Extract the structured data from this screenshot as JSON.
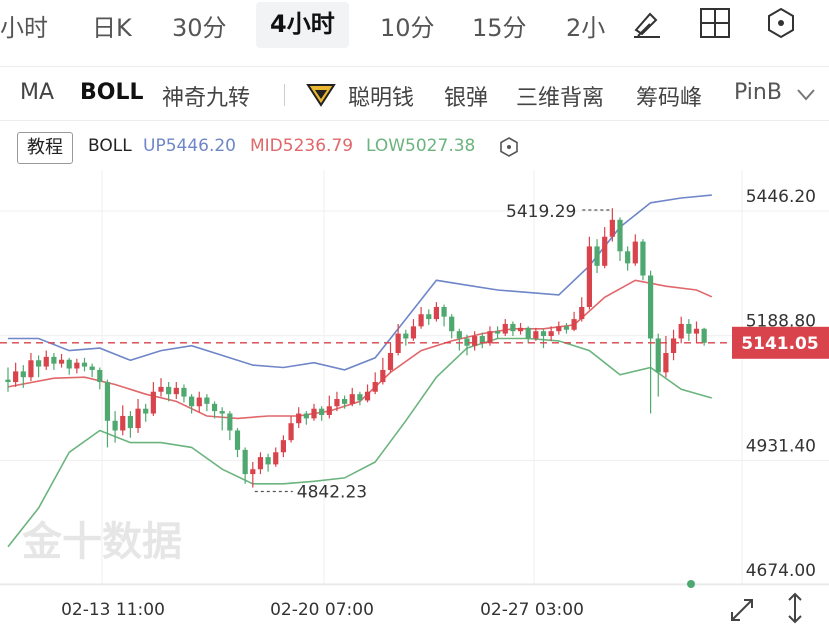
{
  "period_tabs": [
    {
      "label": "小时",
      "active": false
    },
    {
      "label": "日K",
      "active": false
    },
    {
      "label": "30分",
      "active": false
    },
    {
      "label": "4小时",
      "active": true
    },
    {
      "label": "10分",
      "active": false
    },
    {
      "label": "15分",
      "active": false
    },
    {
      "label": "2小",
      "active": false
    }
  ],
  "toolbar_icons": [
    "draw-pen-icon",
    "grid-layout-icon",
    "settings-hex-icon"
  ],
  "indicator_tabs": [
    {
      "label": "MA",
      "active": false
    },
    {
      "label": "BOLL",
      "active": true
    },
    {
      "label": "神奇九转",
      "active": false
    },
    {
      "label": "聪明钱",
      "active": false
    },
    {
      "label": "银弹",
      "active": false
    },
    {
      "label": "三维背离",
      "active": false
    },
    {
      "label": "筹码峰",
      "active": false
    },
    {
      "label": "PinB",
      "active": false
    }
  ],
  "legend": {
    "tutorial_button": "教程",
    "indicator": "BOLL",
    "up": "UP5446.20",
    "mid": "MID5236.79",
    "low": "LOW5027.38"
  },
  "colors": {
    "up_candle": "#d9434b",
    "down_candle": "#4fa86f",
    "boll_up": "#6f86c8",
    "boll_mid": "#e0676a",
    "boll_low": "#6cb47e",
    "current_price": "#d9434b",
    "accent": "#111111"
  },
  "watermark": "金十数据",
  "chart_data": {
    "type": "candlestick",
    "y_axis_ticks": [
      "5446.20",
      "5188.80",
      "4931.40",
      "4674.00"
    ],
    "ylim": [
      4674.0,
      5446.2
    ],
    "x_axis_ticks": [
      "02-13 11:00",
      "02-20 07:00",
      "02-27 03:00"
    ],
    "current_price": "5141.05",
    "max_annotation": "5419.29",
    "min_annotation": "4842.23",
    "candles": [
      [
        5065,
        5060,
        5090,
        5040
      ],
      [
        5060,
        5082,
        5100,
        5050
      ],
      [
        5082,
        5070,
        5095,
        5048
      ],
      [
        5070,
        5105,
        5120,
        5062
      ],
      [
        5105,
        5092,
        5115,
        5070
      ],
      [
        5092,
        5112,
        5125,
        5085
      ],
      [
        5112,
        5098,
        5120,
        5085
      ],
      [
        5098,
        5106,
        5118,
        5090
      ],
      [
        5106,
        5088,
        5110,
        5075
      ],
      [
        5088,
        5100,
        5108,
        5078
      ],
      [
        5100,
        5092,
        5110,
        5082
      ],
      [
        5092,
        5085,
        5098,
        5070
      ],
      [
        5085,
        5060,
        5090,
        5045
      ],
      [
        5060,
        4980,
        5065,
        4925
      ],
      [
        4980,
        4960,
        5000,
        4935
      ],
      [
        4960,
        4990,
        5012,
        4950
      ],
      [
        4990,
        4965,
        5000,
        4945
      ],
      [
        4965,
        5005,
        5025,
        4955
      ],
      [
        5005,
        4995,
        5015,
        4978
      ],
      [
        4995,
        5040,
        5060,
        4990
      ],
      [
        5040,
        5050,
        5068,
        5030
      ],
      [
        5050,
        5035,
        5060,
        5020
      ],
      [
        5035,
        5048,
        5060,
        5025
      ],
      [
        5048,
        5030,
        5055,
        5018
      ],
      [
        5030,
        5010,
        5035,
        4995
      ],
      [
        5010,
        5028,
        5040,
        4998
      ],
      [
        5028,
        5015,
        5035,
        5000
      ],
      [
        5015,
        5000,
        5020,
        4985
      ],
      [
        5000,
        4995,
        5008,
        4960
      ],
      [
        4995,
        4960,
        5000,
        4940
      ],
      [
        4960,
        4920,
        4965,
        4905
      ],
      [
        4920,
        4870,
        4925,
        4850
      ],
      [
        4870,
        4880,
        4895,
        4842
      ],
      [
        4880,
        4905,
        4915,
        4870
      ],
      [
        4905,
        4890,
        4912,
        4875
      ],
      [
        4890,
        4915,
        4925,
        4885
      ],
      [
        4915,
        4940,
        4950,
        4905
      ],
      [
        4940,
        4975,
        4990,
        4935
      ],
      [
        4975,
        4995,
        5008,
        4965
      ],
      [
        4995,
        4985,
        5000,
        4972
      ],
      [
        4985,
        5005,
        5015,
        4980
      ],
      [
        5005,
        4992,
        5010,
        4980
      ],
      [
        4992,
        5010,
        5032,
        4985
      ],
      [
        5010,
        5025,
        5040,
        5000
      ],
      [
        5025,
        5015,
        5032,
        5005
      ],
      [
        5015,
        5035,
        5048,
        5010
      ],
      [
        5035,
        5022,
        5040,
        5012
      ],
      [
        5022,
        5040,
        5055,
        5018
      ],
      [
        5040,
        5060,
        5080,
        5035
      ],
      [
        5060,
        5085,
        5110,
        5055
      ],
      [
        5085,
        5120,
        5140,
        5080
      ],
      [
        5120,
        5160,
        5180,
        5115
      ],
      [
        5160,
        5150,
        5168,
        5135
      ],
      [
        5150,
        5175,
        5190,
        5145
      ],
      [
        5175,
        5200,
        5215,
        5170
      ],
      [
        5200,
        5190,
        5210,
        5178
      ],
      [
        5190,
        5215,
        5225,
        5185
      ],
      [
        5215,
        5195,
        5220,
        5175
      ],
      [
        5195,
        5165,
        5200,
        5150
      ],
      [
        5165,
        5150,
        5170,
        5125
      ],
      [
        5150,
        5135,
        5158,
        5115
      ],
      [
        5135,
        5155,
        5165,
        5125
      ],
      [
        5155,
        5140,
        5162,
        5130
      ],
      [
        5140,
        5165,
        5175,
        5135
      ],
      [
        5165,
        5160,
        5175,
        5150
      ],
      [
        5160,
        5180,
        5190,
        5155
      ],
      [
        5180,
        5165,
        5185,
        5155
      ],
      [
        5165,
        5172,
        5182,
        5158
      ],
      [
        5172,
        5150,
        5175,
        5140
      ],
      [
        5150,
        5165,
        5172,
        5145
      ],
      [
        5165,
        5155,
        5170,
        5130
      ],
      [
        5155,
        5165,
        5175,
        5145
      ],
      [
        5165,
        5175,
        5185,
        5158
      ],
      [
        5175,
        5168,
        5182,
        5160
      ],
      [
        5168,
        5190,
        5205,
        5165
      ],
      [
        5190,
        5215,
        5235,
        5185
      ],
      [
        5215,
        5340,
        5360,
        5210
      ],
      [
        5340,
        5300,
        5355,
        5285
      ],
      [
        5300,
        5360,
        5380,
        5295
      ],
      [
        5360,
        5395,
        5419,
        5350
      ],
      [
        5395,
        5330,
        5400,
        5310
      ],
      [
        5330,
        5305,
        5340,
        5290
      ],
      [
        5305,
        5350,
        5365,
        5300
      ],
      [
        5350,
        5280,
        5355,
        5270
      ],
      [
        5280,
        5150,
        5290,
        4995
      ],
      [
        5150,
        5080,
        5160,
        5030
      ],
      [
        5080,
        5120,
        5155,
        5070
      ],
      [
        5120,
        5150,
        5168,
        5105
      ],
      [
        5150,
        5180,
        5195,
        5140
      ],
      [
        5180,
        5160,
        5190,
        5145
      ],
      [
        5160,
        5170,
        5185,
        5140
      ],
      [
        5170,
        5141,
        5172,
        5135
      ]
    ],
    "boll_up": [
      [
        0,
        5150
      ],
      [
        4,
        5150
      ],
      [
        8,
        5125
      ],
      [
        12,
        5130
      ],
      [
        16,
        5105
      ],
      [
        20,
        5125
      ],
      [
        24,
        5135
      ],
      [
        28,
        5115
      ],
      [
        32,
        5095
      ],
      [
        36,
        5090
      ],
      [
        40,
        5100
      ],
      [
        44,
        5085
      ],
      [
        48,
        5110
      ],
      [
        52,
        5190
      ],
      [
        56,
        5270
      ],
      [
        60,
        5260
      ],
      [
        64,
        5250
      ],
      [
        68,
        5245
      ],
      [
        72,
        5240
      ],
      [
        76,
        5300
      ],
      [
        80,
        5380
      ],
      [
        84,
        5430
      ],
      [
        88,
        5440
      ],
      [
        92,
        5446
      ]
    ],
    "boll_mid": [
      [
        0,
        5050
      ],
      [
        6,
        5068
      ],
      [
        10,
        5070
      ],
      [
        14,
        5055
      ],
      [
        18,
        5035
      ],
      [
        22,
        5020
      ],
      [
        26,
        4990
      ],
      [
        30,
        4985
      ],
      [
        34,
        4990
      ],
      [
        38,
        4990
      ],
      [
        42,
        5000
      ],
      [
        46,
        5020
      ],
      [
        50,
        5080
      ],
      [
        54,
        5125
      ],
      [
        58,
        5145
      ],
      [
        62,
        5160
      ],
      [
        66,
        5170
      ],
      [
        70,
        5170
      ],
      [
        74,
        5178
      ],
      [
        78,
        5235
      ],
      [
        82,
        5270
      ],
      [
        86,
        5258
      ],
      [
        90,
        5250
      ],
      [
        92,
        5236
      ]
    ],
    "boll_low": [
      [
        0,
        4720
      ],
      [
        4,
        4800
      ],
      [
        8,
        4915
      ],
      [
        12,
        4960
      ],
      [
        16,
        4935
      ],
      [
        20,
        4935
      ],
      [
        24,
        4925
      ],
      [
        28,
        4880
      ],
      [
        32,
        4850
      ],
      [
        36,
        4850
      ],
      [
        40,
        4855
      ],
      [
        44,
        4862
      ],
      [
        48,
        4895
      ],
      [
        52,
        4980
      ],
      [
        56,
        5070
      ],
      [
        60,
        5130
      ],
      [
        64,
        5150
      ],
      [
        68,
        5150
      ],
      [
        72,
        5145
      ],
      [
        76,
        5125
      ],
      [
        80,
        5075
      ],
      [
        84,
        5090
      ],
      [
        88,
        5045
      ],
      [
        92,
        5027
      ]
    ]
  }
}
